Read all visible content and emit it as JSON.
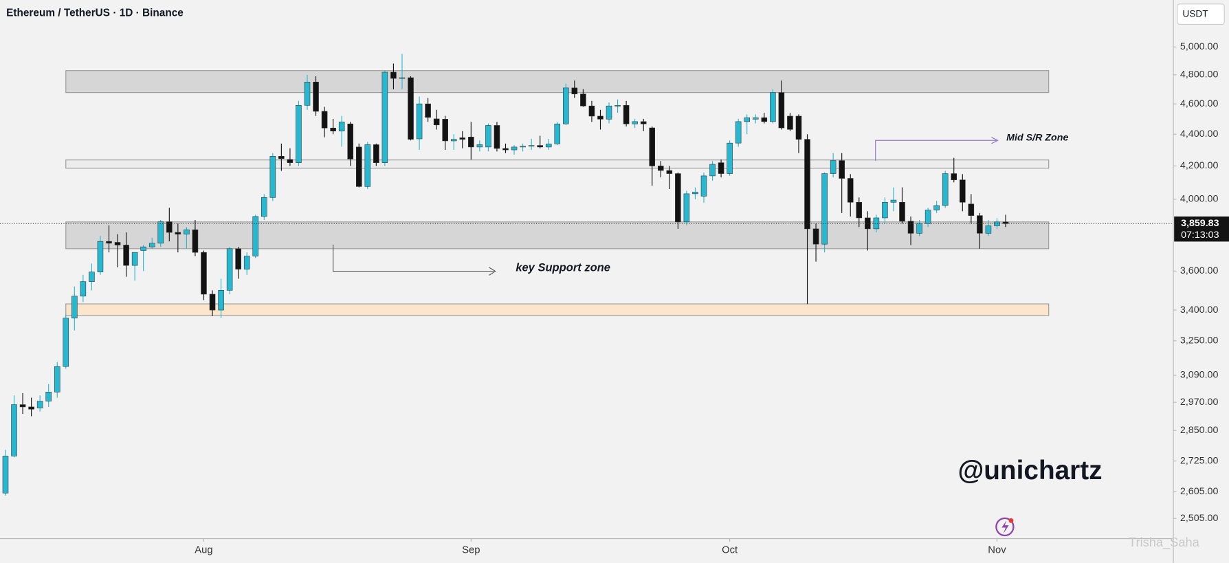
{
  "chart_data": {
    "type": "candlestick",
    "title": "Ethereum / TetherUS · 1D · Binance",
    "currency": "USDT",
    "log_scale": true,
    "grid": false,
    "up_color": "#26b8d0",
    "down_color": "#131313",
    "categories": [
      null,
      null,
      null,
      null,
      null,
      null,
      null,
      null,
      null,
      null,
      null,
      null,
      null,
      null,
      null,
      null,
      null,
      null,
      null,
      null,
      null,
      null,
      null,
      "Aug",
      null,
      null,
      null,
      null,
      null,
      null,
      null,
      null,
      null,
      null,
      null,
      null,
      null,
      null,
      null,
      null,
      null,
      null,
      null,
      null,
      null,
      null,
      null,
      null,
      null,
      null,
      null,
      null,
      null,
      null,
      "Sep",
      null,
      null,
      null,
      null,
      null,
      null,
      null,
      null,
      null,
      null,
      null,
      null,
      null,
      null,
      null,
      null,
      null,
      null,
      null,
      null,
      null,
      null,
      null,
      null,
      null,
      null,
      null,
      null,
      null,
      "Oct",
      null,
      null,
      null,
      null,
      null,
      null,
      null,
      null,
      null,
      null,
      null,
      null,
      null,
      null,
      null,
      null,
      null,
      null,
      null,
      null,
      null,
      null,
      null,
      null,
      null,
      null,
      null,
      null,
      null,
      null,
      "Nov",
      null
    ],
    "open": [
      2600,
      2745,
      2960,
      2950,
      2945,
      2975,
      3015,
      3130,
      3360,
      3470,
      3545,
      3595,
      3760,
      3755,
      3740,
      3630,
      3710,
      3730,
      3750,
      3870,
      3810,
      3800,
      3825,
      3700,
      3480,
      3400,
      3500,
      3720,
      3610,
      3680,
      3900,
      4010,
      4260,
      4240,
      4220,
      4590,
      4750,
      4550,
      4440,
      4420,
      4467,
      4318,
      4075,
      4333,
      4220,
      4819,
      4775,
      4780,
      4370,
      4600,
      4500,
      4498,
      4357,
      4377,
      4382,
      4318,
      4318,
      4457,
      4309,
      4300,
      4318,
      4323,
      4328,
      4318,
      4338,
      4467,
      4709,
      4667,
      4586,
      4518,
      4498,
      4586,
      4590,
      4467,
      4482,
      4441,
      4200,
      4172,
      4153,
      3869,
      4032,
      4018,
      4139,
      4220,
      4153,
      4343,
      4482,
      4498,
      4508,
      4482,
      4677,
      4518,
      4518,
      4367,
      3830,
      3745,
      4153,
      4233,
      4124,
      3982,
      3892,
      3830,
      3892,
      3982,
      3982,
      3873,
      3805,
      3860,
      3937,
      3963,
      4153,
      4115,
      3972,
      3905,
      3805,
      3847,
      3869
    ],
    "high": [
      2770,
      3000,
      3010,
      2990,
      3000,
      3050,
      3150,
      3380,
      3520,
      3580,
      3640,
      3790,
      3850,
      3800,
      3810,
      3700,
      3740,
      3780,
      3880,
      3950,
      3860,
      3840,
      3880,
      3710,
      3500,
      3560,
      3730,
      3730,
      3700,
      3910,
      4030,
      4280,
      4340,
      4310,
      4620,
      4800,
      4790,
      4580,
      4500,
      4520,
      4480,
      4340,
      4350,
      4340,
      4830,
      4880,
      4950,
      4790,
      4650,
      4640,
      4560,
      4520,
      4400,
      4420,
      4480,
      4360,
      4470,
      4480,
      4340,
      4330,
      4340,
      4370,
      4390,
      4370,
      4480,
      4740,
      4760,
      4700,
      4620,
      4560,
      4610,
      4630,
      4620,
      4500,
      4500,
      4450,
      4230,
      4200,
      4160,
      4050,
      4070,
      4160,
      4230,
      4240,
      4360,
      4500,
      4530,
      4530,
      4540,
      4700,
      4760,
      4540,
      4530,
      4400,
      3860,
      4160,
      4280,
      4280,
      4150,
      4010,
      3930,
      3910,
      4010,
      4070,
      4070,
      3900,
      3880,
      3950,
      3990,
      4170,
      4250,
      4150,
      4030,
      3920,
      3880,
      3890,
      3910
    ],
    "low": [
      2590,
      2740,
      2920,
      2910,
      2930,
      2950,
      2990,
      3120,
      3300,
      3440,
      3500,
      3580,
      3700,
      3620,
      3570,
      3550,
      3600,
      3720,
      3730,
      3760,
      3700,
      3720,
      3680,
      3450,
      3370,
      3360,
      3480,
      3560,
      3580,
      3670,
      3880,
      3990,
      4170,
      4200,
      4200,
      4560,
      4520,
      4380,
      4400,
      4320,
      4200,
      4070,
      4060,
      4200,
      4200,
      4700,
      4700,
      4360,
      4300,
      4480,
      4430,
      4300,
      4300,
      4310,
      4240,
      4290,
      4290,
      4290,
      4280,
      4270,
      4290,
      4300,
      4310,
      4300,
      4330,
      4460,
      4640,
      4580,
      4480,
      4430,
      4470,
      4540,
      4450,
      4440,
      4420,
      4080,
      4130,
      4060,
      3830,
      3850,
      4000,
      3980,
      4110,
      4130,
      4140,
      4320,
      4400,
      4470,
      4470,
      4470,
      4430,
      4420,
      4280,
      3430,
      3650,
      3700,
      4130,
      3920,
      3900,
      3840,
      3710,
      3810,
      3860,
      3930,
      3860,
      3740,
      3790,
      3840,
      3920,
      3950,
      4100,
      3930,
      3860,
      3720,
      3790,
      3830,
      3840
    ],
    "close": [
      2745,
      2960,
      2950,
      2940,
      2975,
      3015,
      3130,
      3360,
      3470,
      3545,
      3595,
      3760,
      3750,
      3740,
      3630,
      3700,
      3730,
      3750,
      3870,
      3810,
      3800,
      3825,
      3700,
      3480,
      3400,
      3500,
      3720,
      3610,
      3680,
      3900,
      4010,
      4260,
      4245,
      4220,
      4590,
      4750,
      4550,
      4440,
      4420,
      4480,
      4243,
      4075,
      4333,
      4220,
      4819,
      4775,
      4780,
      4367,
      4600,
      4510,
      4460,
      4357,
      4367,
      4367,
      4318,
      4333,
      4457,
      4309,
      4300,
      4318,
      4323,
      4328,
      4318,
      4338,
      4467,
      4709,
      4667,
      4586,
      4518,
      4498,
      4586,
      4590,
      4467,
      4482,
      4467,
      4200,
      4172,
      4153,
      3869,
      4032,
      4042,
      4139,
      4210,
      4153,
      4343,
      4482,
      4508,
      4508,
      4482,
      4677,
      4441,
      4431,
      4367,
      3830,
      3745,
      4153,
      4233,
      4124,
      3982,
      3892,
      3830,
      3892,
      3982,
      3995,
      3873,
      3805,
      3860,
      3937,
      3963,
      4153,
      4115,
      3982,
      3905,
      3805,
      3847,
      3869,
      3859.83
    ],
    "ylim": [
      2432,
      5356
    ],
    "yticks": [
      {
        "value": 5000,
        "label": "5,000.00"
      },
      {
        "value": 4800,
        "label": "4,800.00"
      },
      {
        "value": 4600,
        "label": "4,600.00"
      },
      {
        "value": 4400,
        "label": "4,400.00"
      },
      {
        "value": 4200,
        "label": "4,200.00"
      },
      {
        "value": 4000,
        "label": "4,000.00"
      },
      {
        "value": 3600,
        "label": "3,600.00"
      },
      {
        "value": 3400,
        "label": "3,400.00"
      },
      {
        "value": 3250,
        "label": "3,250.00"
      },
      {
        "value": 3090,
        "label": "3,090.00"
      },
      {
        "value": 2970,
        "label": "2,970.00"
      },
      {
        "value": 2850,
        "label": "2,850.00"
      },
      {
        "value": 2725,
        "label": "2,725.00"
      },
      {
        "value": 2605,
        "label": "2,605.00"
      },
      {
        "value": 2505,
        "label": "2,505.00"
      }
    ],
    "last_price": {
      "value": 3859.83,
      "label": "3,859.83"
    },
    "countdown": "07:13:03",
    "zones": [
      {
        "low": 4677,
        "high": 4830,
        "color": "#d6d6d6"
      },
      {
        "low": 4186,
        "high": 4237,
        "color": "#ececec"
      },
      {
        "low": 3720,
        "high": 3869,
        "color": "#d6d6d6"
      },
      {
        "low": 3373,
        "high": 3431,
        "color": "#fbe6cc"
      }
    ],
    "annotations": [
      "key Support zone",
      "Mid S/R Zone"
    ],
    "watermark": "@unichartz",
    "credit": "Trisha_Saha"
  }
}
